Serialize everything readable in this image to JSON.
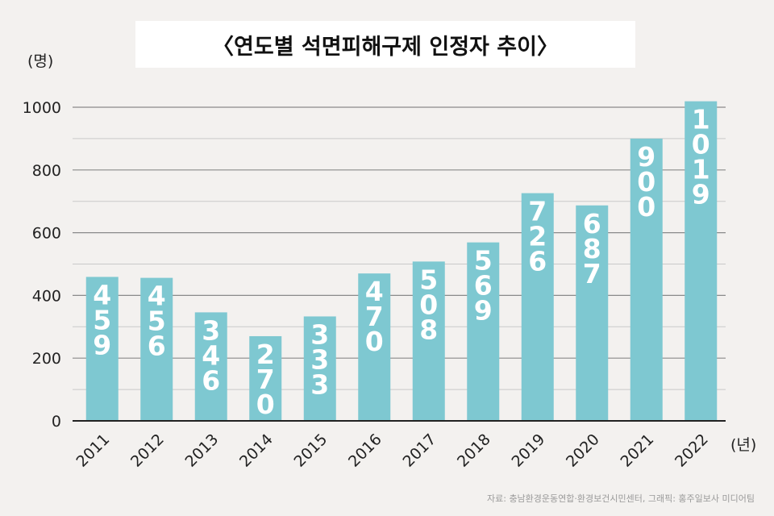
{
  "chart_data": {
    "type": "bar",
    "title": "〈연도별 석면피해구제 인정자 추이〉",
    "ylabel": "(명)",
    "xlabel": "(년)",
    "categories": [
      "2011",
      "2012",
      "2013",
      "2014",
      "2015",
      "2016",
      "2017",
      "2018",
      "2019",
      "2020",
      "2021",
      "2022"
    ],
    "values": [
      459,
      456,
      346,
      270,
      333,
      470,
      508,
      569,
      726,
      687,
      900,
      1019
    ],
    "ylim": [
      0,
      1000
    ],
    "yticks": [
      0,
      200,
      400,
      600,
      800,
      1000
    ],
    "grid": true,
    "bar_color": "#7ec8d1"
  },
  "source": "자료: 충남환경운동연합·환경보건시민센터, 그래픽: 홍주일보사 미디어팀"
}
